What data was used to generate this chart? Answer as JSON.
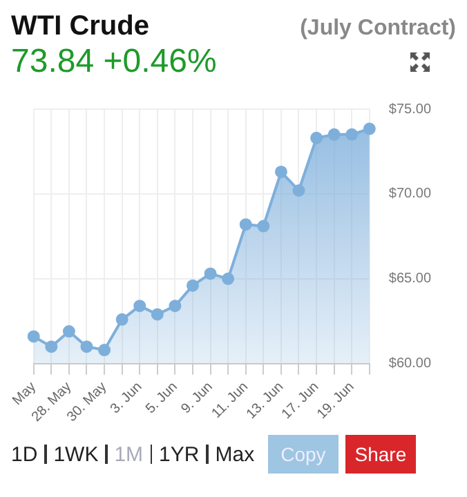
{
  "chart_data": {
    "type": "area",
    "title": "WTI Crude",
    "subtitle": "(July Contract)",
    "annotations": [
      "73.84 +0.46%",
      "1D",
      "1WK",
      "1M",
      "1YR",
      "Max",
      "Copy",
      "Share"
    ],
    "categories": [
      "May",
      null,
      "28. May",
      null,
      "30. May",
      null,
      "3. Jun",
      null,
      "5. Jun",
      null,
      "9. Jun",
      null,
      "11. Jun",
      null,
      "13. Jun",
      null,
      "17. Jun",
      null,
      "19. Jun",
      null
    ],
    "series": [
      {
        "color": "#7eafdb",
        "values": [
          61.6,
          61.0,
          61.9,
          61.0,
          60.8,
          62.6,
          63.4,
          62.9,
          63.4,
          64.6,
          65.3,
          65.0,
          68.2,
          68.1,
          71.3,
          70.2,
          73.3,
          73.5,
          73.5,
          73.84
        ]
      }
    ],
    "ylim": [
      60,
      75
    ],
    "yticks": [
      {
        "value": 60,
        "label": "$60.00"
      },
      {
        "value": 65,
        "label": "$65.00"
      },
      {
        "value": 70,
        "label": "$70.00"
      },
      {
        "value": 75,
        "label": "$75.00"
      }
    ],
    "grid": true,
    "legend": false,
    "marker": "circle",
    "line_style": "solid"
  }
}
